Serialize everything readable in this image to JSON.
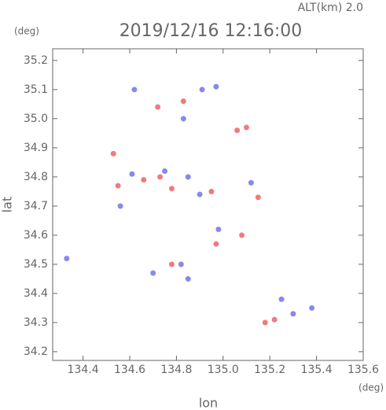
{
  "chart_data": {
    "type": "scatter",
    "title": "2019/12/16 12:16:00",
    "subtitle": "ALT(km) 2.0",
    "x_label": "lon",
    "y_label": "lat",
    "x_unit": "(deg)",
    "y_unit": "(deg)",
    "xlim": [
      134.27,
      135.6
    ],
    "ylim": [
      34.17,
      35.24
    ],
    "xticks": [
      134.4,
      134.6,
      134.8,
      {
        "value": 135,
        "label": "135.0"
      },
      135.2,
      135.4,
      135.6
    ],
    "yticks": [
      34.2,
      34.3,
      34.4,
      34.5,
      34.6,
      34.7,
      34.8,
      34.9,
      {
        "value": 35,
        "label": "35.0"
      },
      35.1,
      35.2
    ],
    "series": [
      {
        "color": "#ee5a5a",
        "x": [
          134.72,
          134.83,
          135.1,
          134.53,
          134.73,
          134.78,
          135.18,
          135.22,
          134.97,
          134.78,
          134.55,
          135.06,
          134.95,
          135.08,
          134.66,
          135.15
        ],
        "y": [
          35.04,
          35.06,
          34.97,
          34.88,
          34.8,
          34.76,
          34.3,
          34.31,
          34.57,
          34.5,
          34.77,
          34.96,
          34.75,
          34.6,
          34.79,
          34.73
        ]
      },
      {
        "color": "#6a6ae8",
        "x": [
          134.91,
          134.62,
          134.97,
          134.75,
          134.85,
          134.61,
          134.33,
          135.25,
          135.38,
          134.85,
          134.82,
          134.98,
          134.9,
          134.7,
          135.12,
          134.56,
          135.3,
          134.83
        ],
        "y": [
          35.1,
          35.1,
          35.11,
          34.82,
          34.8,
          34.81,
          34.52,
          34.38,
          34.35,
          34.45,
          34.5,
          34.62,
          34.74,
          34.47,
          34.78,
          34.7,
          34.33,
          35.0
        ]
      }
    ]
  }
}
